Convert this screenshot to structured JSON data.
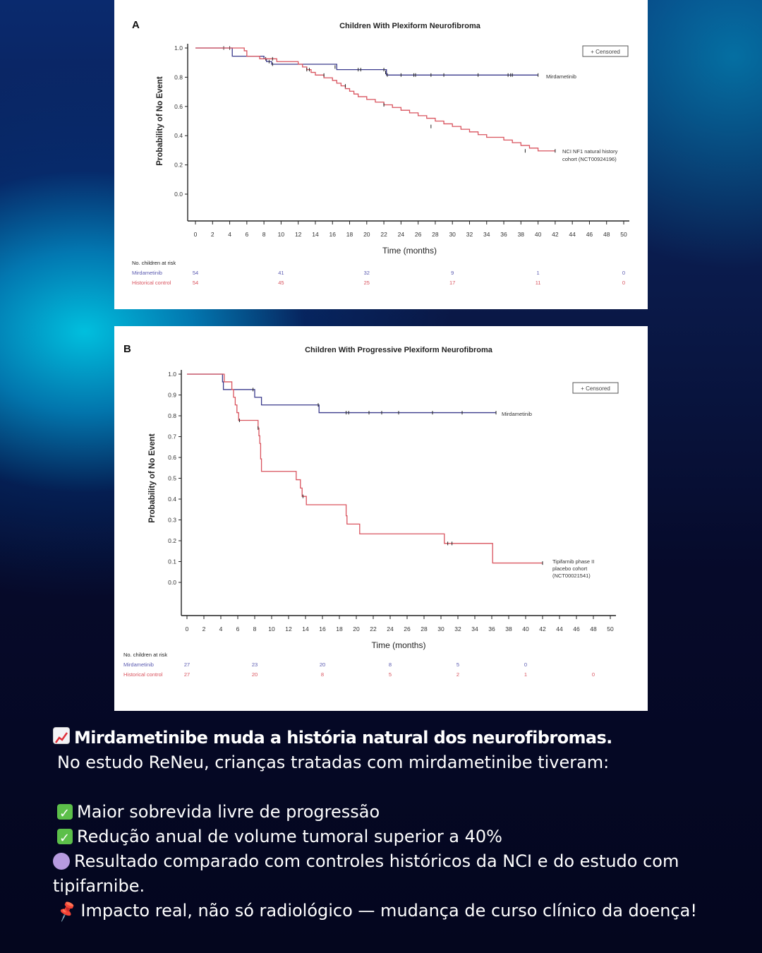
{
  "chart_data": [
    {
      "type": "line",
      "panel_label": "A",
      "title": "Children With Plexiform Neurofibroma",
      "xlabel": "Time (months)",
      "ylabel": "Probability of No Event",
      "xlim": [
        0,
        50
      ],
      "ylim": [
        0,
        1.0
      ],
      "xticks": [
        0,
        2,
        4,
        6,
        8,
        10,
        12,
        14,
        16,
        18,
        20,
        22,
        24,
        26,
        28,
        30,
        32,
        34,
        36,
        38,
        40,
        42,
        44,
        46,
        48,
        50
      ],
      "yticks": [
        "1.0",
        "0.8",
        "0.6",
        "0.4",
        "0.2",
        "0.0"
      ],
      "yticks_values": [
        1.0,
        0.8,
        0.6,
        0.4,
        0.2,
        0.0
      ],
      "grid": false,
      "legend": {
        "label": "+ Censored",
        "placement": "top-right"
      },
      "series": [
        {
          "name": "Mirdametinib",
          "color": "#3a3a8c",
          "steps": [
            [
              0,
              1.0
            ],
            [
              4.3,
              0.944
            ],
            [
              8,
              0.926
            ],
            [
              8.3,
              0.907
            ],
            [
              8.9,
              0.889
            ],
            [
              16,
              0.889
            ],
            [
              16.5,
              0.852
            ],
            [
              22,
              0.852
            ],
            [
              22.3,
              0.815
            ],
            [
              40,
              0.815
            ]
          ],
          "censored": [
            [
              3.3,
              1.0
            ],
            [
              4,
              1.0
            ],
            [
              8.2,
              0.926
            ],
            [
              8.6,
              0.907
            ],
            [
              9,
              0.889
            ],
            [
              16.3,
              0.87
            ],
            [
              19,
              0.852
            ],
            [
              19.3,
              0.852
            ],
            [
              22,
              0.852
            ],
            [
              22.2,
              0.833
            ],
            [
              22.4,
              0.815
            ],
            [
              24,
              0.815
            ],
            [
              25.5,
              0.815
            ],
            [
              25.7,
              0.815
            ],
            [
              27.5,
              0.815
            ],
            [
              29,
              0.815
            ],
            [
              33,
              0.815
            ],
            [
              36.5,
              0.815
            ],
            [
              36.8,
              0.815
            ],
            [
              37,
              0.815
            ],
            [
              40,
              0.815
            ]
          ]
        },
        {
          "name": "NCI NF1 natural history cohort (NCT00924196)",
          "color": "#d9535e",
          "steps": [
            [
              0,
              1.0
            ],
            [
              5.7,
              0.981
            ],
            [
              6,
              0.944
            ],
            [
              7.5,
              0.926
            ],
            [
              9.5,
              0.907
            ],
            [
              12,
              0.889
            ],
            [
              12.5,
              0.87
            ],
            [
              13,
              0.852
            ],
            [
              13.5,
              0.833
            ],
            [
              14,
              0.815
            ],
            [
              15,
              0.796
            ],
            [
              16,
              0.778
            ],
            [
              16.5,
              0.759
            ],
            [
              17,
              0.741
            ],
            [
              17.5,
              0.722
            ],
            [
              18,
              0.704
            ],
            [
              18.5,
              0.685
            ],
            [
              19,
              0.667
            ],
            [
              20,
              0.648
            ],
            [
              21,
              0.63
            ],
            [
              22,
              0.611
            ],
            [
              23,
              0.593
            ],
            [
              24,
              0.574
            ],
            [
              25,
              0.556
            ],
            [
              26,
              0.537
            ],
            [
              27,
              0.519
            ],
            [
              28,
              0.5
            ],
            [
              29,
              0.481
            ],
            [
              30,
              0.463
            ],
            [
              31,
              0.444
            ],
            [
              32,
              0.426
            ],
            [
              33,
              0.407
            ],
            [
              34,
              0.389
            ],
            [
              36,
              0.37
            ],
            [
              37,
              0.352
            ],
            [
              38,
              0.333
            ],
            [
              39,
              0.315
            ],
            [
              40,
              0.296
            ],
            [
              42,
              0.296
            ]
          ],
          "censored": [
            [
              9,
              0.926
            ],
            [
              13,
              0.852
            ],
            [
              13.3,
              0.852
            ],
            [
              15,
              0.815
            ],
            [
              17.5,
              0.741
            ],
            [
              22,
              0.611
            ],
            [
              27.5,
              0.463
            ],
            [
              38.5,
              0.296
            ],
            [
              42,
              0.296
            ]
          ]
        }
      ],
      "at_risk": {
        "header": "No. children at risk",
        "times": [
          0,
          10,
          20,
          30,
          40,
          50
        ],
        "rows": [
          {
            "label": "Mirdametinib",
            "color": "#5a5ab0",
            "values": [
              "54",
              "41",
              "32",
              "9",
              "1",
              "0"
            ]
          },
          {
            "label": "Historical control",
            "color": "#d9535e",
            "values": [
              "54",
              "45",
              "25",
              "17",
              "11",
              "0"
            ]
          }
        ]
      },
      "series_labels": [
        "Mirdametinib",
        "NCI NF1 natural history",
        "cohort (NCT00924196)"
      ]
    },
    {
      "type": "line",
      "panel_label": "B",
      "title": "Children With Progressive Plexiform Neurofibroma",
      "xlabel": "Time (months)",
      "ylabel": "Probability of No Event",
      "xlim": [
        0,
        50
      ],
      "ylim": [
        0,
        1.0
      ],
      "xticks": [
        0,
        2,
        4,
        6,
        8,
        10,
        12,
        14,
        16,
        18,
        20,
        22,
        24,
        26,
        28,
        30,
        32,
        34,
        36,
        38,
        40,
        42,
        44,
        46,
        48,
        50
      ],
      "yticks": [
        "1.0",
        "0.9",
        "0.8",
        "0.7",
        "0.6",
        "0.5",
        "0.4",
        "0.3",
        "0.2",
        "0.1",
        "0.0"
      ],
      "yticks_values": [
        1.0,
        0.9,
        0.8,
        0.7,
        0.6,
        0.5,
        0.4,
        0.3,
        0.2,
        0.1,
        0.0
      ],
      "grid": false,
      "legend": {
        "label": "+ Censored",
        "placement": "top-right"
      },
      "series": [
        {
          "name": "Mirdametinib",
          "color": "#3a3a8c",
          "steps": [
            [
              0,
              1.0
            ],
            [
              4.2,
              0.963
            ],
            [
              4.3,
              0.926
            ],
            [
              7.8,
              0.926
            ],
            [
              8,
              0.889
            ],
            [
              8.7,
              0.889
            ],
            [
              8.8,
              0.852
            ],
            [
              15.5,
              0.852
            ],
            [
              15.6,
              0.815
            ],
            [
              36.5,
              0.815
            ]
          ],
          "censored": [
            [
              7.8,
              0.926
            ],
            [
              15.5,
              0.852
            ],
            [
              18.8,
              0.815
            ],
            [
              19.1,
              0.815
            ],
            [
              21.5,
              0.815
            ],
            [
              23,
              0.815
            ],
            [
              25,
              0.815
            ],
            [
              29,
              0.815
            ],
            [
              32.5,
              0.815
            ],
            [
              36.5,
              0.815
            ]
          ]
        },
        {
          "name": "Tipifarnib phase II placebo cohort (NCT00021541)",
          "color": "#d9535e",
          "steps": [
            [
              0,
              1.0
            ],
            [
              4.4,
              0.963
            ],
            [
              5.3,
              0.926
            ],
            [
              5.5,
              0.889
            ],
            [
              5.7,
              0.852
            ],
            [
              5.9,
              0.815
            ],
            [
              6.1,
              0.778
            ],
            [
              8.4,
              0.741
            ],
            [
              8.5,
              0.704
            ],
            [
              8.6,
              0.667
            ],
            [
              8.7,
              0.593
            ],
            [
              8.8,
              0.533
            ],
            [
              12.8,
              0.533
            ],
            [
              12.9,
              0.493
            ],
            [
              13.4,
              0.453
            ],
            [
              13.6,
              0.413
            ],
            [
              14.1,
              0.373
            ],
            [
              18.8,
              0.32
            ],
            [
              18.9,
              0.28
            ],
            [
              20.3,
              0.28
            ],
            [
              20.4,
              0.233
            ],
            [
              30.3,
              0.233
            ],
            [
              30.4,
              0.187
            ],
            [
              36,
              0.187
            ],
            [
              36.1,
              0.093
            ],
            [
              42,
              0.093
            ]
          ],
          "censored": [
            [
              6.2,
              0.778
            ],
            [
              8.4,
              0.741
            ],
            [
              13.7,
              0.413
            ],
            [
              30.8,
              0.187
            ],
            [
              31.3,
              0.187
            ],
            [
              42,
              0.093
            ]
          ]
        }
      ],
      "at_risk": {
        "header": "No. children at risk",
        "times": [
          0,
          8,
          16,
          24,
          32,
          40,
          48
        ],
        "rows": [
          {
            "label": "Mirdametinib",
            "color": "#5a5ab0",
            "values": [
              "27",
              "23",
              "20",
              "8",
              "5",
              "0",
              ""
            ]
          },
          {
            "label": "Historical control",
            "color": "#d9535e",
            "values": [
              "27",
              "20",
              "8",
              "5",
              "2",
              "1",
              "0"
            ]
          }
        ]
      },
      "series_labels": [
        "Mirdametinib",
        "Tipifarnib phase II",
        "placebo cohort",
        "(NCT00021541)"
      ]
    }
  ],
  "caption": {
    "headline_icon": "chart-increasing-icon",
    "headline": "Mirdametinibe muda a história natural dos neurofibromas.",
    "intro": "No estudo ReNeu, crianças tratadas com mirdametinibe tiveram:",
    "bullets": [
      {
        "icon": "check-mark-icon",
        "text": "Maior sobrevida livre de progressão"
      },
      {
        "icon": "check-mark-icon",
        "text": "Redução anual de volume tumoral superior a 40%"
      },
      {
        "icon": "purple-circle-icon",
        "text": "Resultado comparado com controles históricos da NCI e do estudo com tipifarnibe."
      },
      {
        "icon": "pushpin-icon",
        "text": "Impacto real, não só radiológico — mudança de curso clínico da doença!"
      }
    ]
  }
}
